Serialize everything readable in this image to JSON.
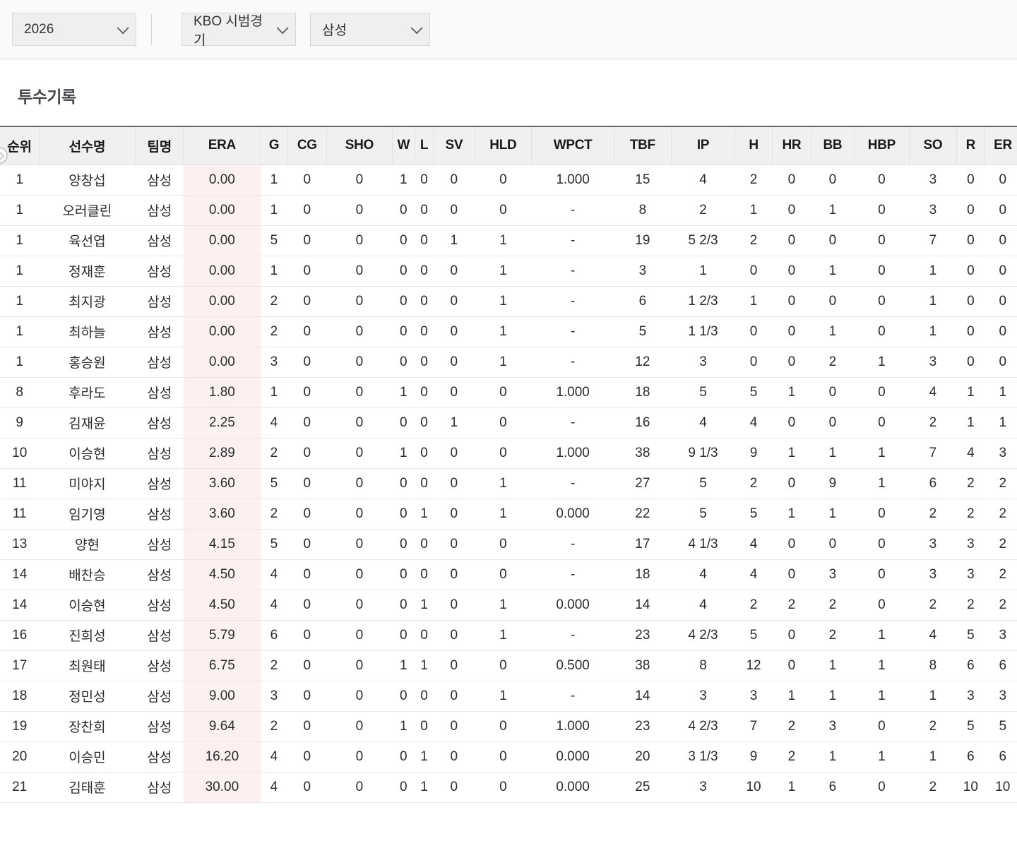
{
  "filters": {
    "season": "2026",
    "league": "KBO 시범경기",
    "team": "삼성"
  },
  "section": {
    "title": "투수기록"
  },
  "colors": {
    "era_highlight": "#fcf1f0",
    "table_top_border": "#6b6b6b"
  },
  "table": {
    "columns": [
      "순위",
      "선수명",
      "팀명",
      "ERA",
      "G",
      "CG",
      "SHO",
      "W",
      "L",
      "SV",
      "HLD",
      "WPCT",
      "TBF",
      "IP",
      "H",
      "HR",
      "BB",
      "HBP",
      "SO",
      "R",
      "ER"
    ],
    "rows": [
      [
        "1",
        "양창섭",
        "삼성",
        "0.00",
        "1",
        "0",
        "0",
        "1",
        "0",
        "0",
        "0",
        "1.000",
        "15",
        "4",
        "2",
        "0",
        "0",
        "0",
        "3",
        "0",
        "0"
      ],
      [
        "1",
        "오러클린",
        "삼성",
        "0.00",
        "1",
        "0",
        "0",
        "0",
        "0",
        "0",
        "0",
        "-",
        "8",
        "2",
        "1",
        "0",
        "1",
        "0",
        "3",
        "0",
        "0"
      ],
      [
        "1",
        "육선엽",
        "삼성",
        "0.00",
        "5",
        "0",
        "0",
        "0",
        "0",
        "1",
        "1",
        "-",
        "19",
        "5 2/3",
        "2",
        "0",
        "0",
        "0",
        "7",
        "0",
        "0"
      ],
      [
        "1",
        "정재훈",
        "삼성",
        "0.00",
        "1",
        "0",
        "0",
        "0",
        "0",
        "0",
        "1",
        "-",
        "3",
        "1",
        "0",
        "0",
        "1",
        "0",
        "1",
        "0",
        "0"
      ],
      [
        "1",
        "최지광",
        "삼성",
        "0.00",
        "2",
        "0",
        "0",
        "0",
        "0",
        "0",
        "1",
        "-",
        "6",
        "1 2/3",
        "1",
        "0",
        "0",
        "0",
        "1",
        "0",
        "0"
      ],
      [
        "1",
        "최하늘",
        "삼성",
        "0.00",
        "2",
        "0",
        "0",
        "0",
        "0",
        "0",
        "1",
        "-",
        "5",
        "1 1/3",
        "0",
        "0",
        "1",
        "0",
        "1",
        "0",
        "0"
      ],
      [
        "1",
        "홍승원",
        "삼성",
        "0.00",
        "3",
        "0",
        "0",
        "0",
        "0",
        "0",
        "1",
        "-",
        "12",
        "3",
        "0",
        "0",
        "2",
        "1",
        "3",
        "0",
        "0"
      ],
      [
        "8",
        "후라도",
        "삼성",
        "1.80",
        "1",
        "0",
        "0",
        "1",
        "0",
        "0",
        "0",
        "1.000",
        "18",
        "5",
        "5",
        "1",
        "0",
        "0",
        "4",
        "1",
        "1"
      ],
      [
        "9",
        "김재윤",
        "삼성",
        "2.25",
        "4",
        "0",
        "0",
        "0",
        "0",
        "1",
        "0",
        "-",
        "16",
        "4",
        "4",
        "0",
        "0",
        "0",
        "2",
        "1",
        "1"
      ],
      [
        "10",
        "이승현",
        "삼성",
        "2.89",
        "2",
        "0",
        "0",
        "1",
        "0",
        "0",
        "0",
        "1.000",
        "38",
        "9 1/3",
        "9",
        "1",
        "1",
        "1",
        "7",
        "4",
        "3"
      ],
      [
        "11",
        "미야지",
        "삼성",
        "3.60",
        "5",
        "0",
        "0",
        "0",
        "0",
        "0",
        "1",
        "-",
        "27",
        "5",
        "2",
        "0",
        "9",
        "1",
        "6",
        "2",
        "2"
      ],
      [
        "11",
        "임기영",
        "삼성",
        "3.60",
        "2",
        "0",
        "0",
        "0",
        "1",
        "0",
        "1",
        "0.000",
        "22",
        "5",
        "5",
        "1",
        "1",
        "0",
        "2",
        "2",
        "2"
      ],
      [
        "13",
        "양현",
        "삼성",
        "4.15",
        "5",
        "0",
        "0",
        "0",
        "0",
        "0",
        "0",
        "-",
        "17",
        "4 1/3",
        "4",
        "0",
        "0",
        "0",
        "3",
        "3",
        "2"
      ],
      [
        "14",
        "배찬승",
        "삼성",
        "4.50",
        "4",
        "0",
        "0",
        "0",
        "0",
        "0",
        "0",
        "-",
        "18",
        "4",
        "4",
        "0",
        "3",
        "0",
        "3",
        "3",
        "2"
      ],
      [
        "14",
        "이승현",
        "삼성",
        "4.50",
        "4",
        "0",
        "0",
        "0",
        "1",
        "0",
        "1",
        "0.000",
        "14",
        "4",
        "2",
        "2",
        "2",
        "0",
        "2",
        "2",
        "2"
      ],
      [
        "16",
        "진희성",
        "삼성",
        "5.79",
        "6",
        "0",
        "0",
        "0",
        "0",
        "0",
        "1",
        "-",
        "23",
        "4 2/3",
        "5",
        "0",
        "2",
        "1",
        "4",
        "5",
        "3"
      ],
      [
        "17",
        "최원태",
        "삼성",
        "6.75",
        "2",
        "0",
        "0",
        "1",
        "1",
        "0",
        "0",
        "0.500",
        "38",
        "8",
        "12",
        "0",
        "1",
        "1",
        "8",
        "6",
        "6"
      ],
      [
        "18",
        "정민성",
        "삼성",
        "9.00",
        "3",
        "0",
        "0",
        "0",
        "0",
        "0",
        "1",
        "-",
        "14",
        "3",
        "3",
        "1",
        "1",
        "1",
        "1",
        "3",
        "3"
      ],
      [
        "19",
        "장찬희",
        "삼성",
        "9.64",
        "2",
        "0",
        "0",
        "1",
        "0",
        "0",
        "0",
        "1.000",
        "23",
        "4 2/3",
        "7",
        "2",
        "3",
        "0",
        "2",
        "5",
        "5"
      ],
      [
        "20",
        "이승민",
        "삼성",
        "16.20",
        "4",
        "0",
        "0",
        "0",
        "1",
        "0",
        "0",
        "0.000",
        "20",
        "3 1/3",
        "9",
        "2",
        "1",
        "1",
        "1",
        "6",
        "6"
      ],
      [
        "21",
        "김태훈",
        "삼성",
        "30.00",
        "4",
        "0",
        "0",
        "0",
        "1",
        "0",
        "0",
        "0.000",
        "25",
        "3",
        "10",
        "1",
        "6",
        "0",
        "2",
        "10",
        "10"
      ]
    ]
  }
}
